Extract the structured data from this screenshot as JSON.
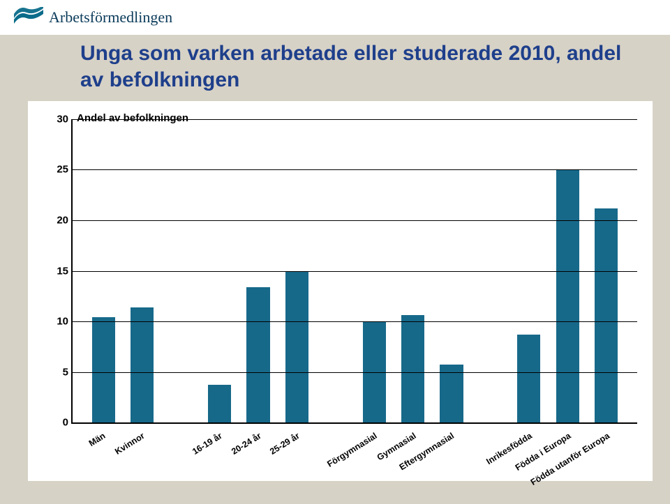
{
  "header": {
    "brand": "Arbetsförmedlingen",
    "logo_color": "#0b6b8a"
  },
  "title": {
    "text": "Unga som varken arbetade eller studerade 2010, andel av befolkningen",
    "color": "#1e3f8b",
    "fontsize": 30
  },
  "chart": {
    "type": "bar",
    "ylabel": "Andel av befolkningen",
    "ylim": [
      0,
      30
    ],
    "ytick_step": 5,
    "yticks": [
      0,
      5,
      10,
      15,
      20,
      25,
      30
    ],
    "background_color": "#ffffff",
    "grid_color": "#000000",
    "axis_color": "#000000",
    "bar_color": "#17698a",
    "bar_width": 0.6,
    "label_fontsize": 13,
    "tick_fontsize": 15,
    "groups": [
      {
        "gap_before": 0.3,
        "items": [
          {
            "label": "Män",
            "value": 10.4
          },
          {
            "label": "Kvinnor",
            "value": 11.4
          }
        ]
      },
      {
        "gap_before": 1.0,
        "items": [
          {
            "label": "16-19 år",
            "value": 3.7
          },
          {
            "label": "20-24 år",
            "value": 13.4
          },
          {
            "label": "25-29 år",
            "value": 15.0
          }
        ]
      },
      {
        "gap_before": 1.0,
        "items": [
          {
            "label": "Förgymnasial",
            "value": 10.0
          },
          {
            "label": "Gymnasial",
            "value": 10.6
          },
          {
            "label": "Eftergymnasial",
            "value": 5.7
          }
        ]
      },
      {
        "gap_before": 1.0,
        "items": [
          {
            "label": "Inrikesfödda",
            "value": 8.7
          },
          {
            "label": "Födda i Europa",
            "value": 25.0
          },
          {
            "label": "Födda utanför Europa",
            "value": 21.2
          }
        ]
      }
    ]
  },
  "page": {
    "background_color": "#d7d2c6"
  }
}
